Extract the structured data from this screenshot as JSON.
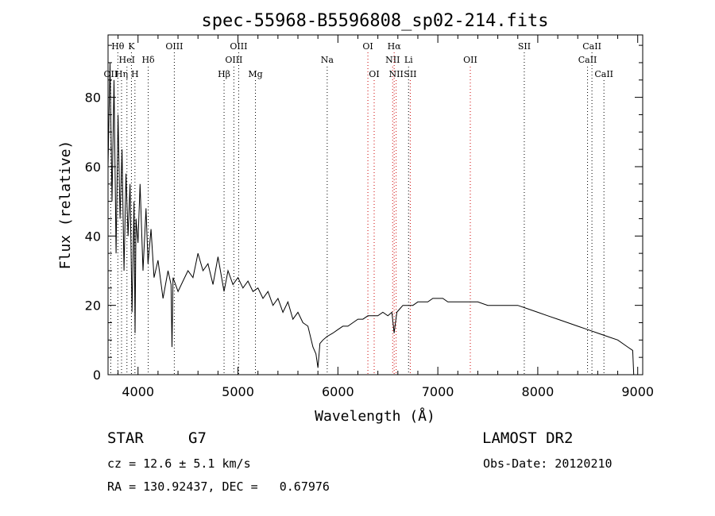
{
  "chart_data": {
    "type": "line",
    "title": "spec-55968-B5596808_sp02-214.fits",
    "xlabel": "Wavelength (Å)",
    "ylabel": "Flux (relative)",
    "xlim": [
      3700,
      9050
    ],
    "ylim": [
      0,
      98
    ],
    "xticks": [
      "4000",
      "5000",
      "6000",
      "7000",
      "8000",
      "9000"
    ],
    "yticks": [
      "0",
      "20",
      "40",
      "60",
      "80"
    ],
    "grid": false,
    "series": [
      {
        "x": [
          3700,
          3720,
          3740,
          3760,
          3780,
          3800,
          3820,
          3840,
          3860,
          3880,
          3900,
          3920,
          3940,
          3960,
          3970,
          3980,
          4000,
          4020,
          4050,
          4080,
          4100,
          4130,
          4160,
          4200,
          4250,
          4300,
          4330,
          4340,
          4350,
          4400,
          4450,
          4500,
          4550,
          4600,
          4650,
          4700,
          4750,
          4800,
          4861,
          4900,
          4950,
          5000,
          5050,
          5100,
          5150,
          5200,
          5250,
          5300,
          5350,
          5400,
          5450,
          5500,
          5550,
          5600,
          5650,
          5700,
          5750,
          5780,
          5800,
          5820,
          5850,
          5890,
          5950,
          6000,
          6050,
          6100,
          6150,
          6200,
          6250,
          6300,
          6350,
          6400,
          6450,
          6500,
          6540,
          6563,
          6590,
          6620,
          6650,
          6700,
          6750,
          6800,
          6850,
          6900,
          6950,
          7000,
          7050,
          7100,
          7150,
          7200,
          7300,
          7400,
          7500,
          7600,
          7700,
          7800,
          7900,
          8000,
          8100,
          8200,
          8300,
          8400,
          8500,
          8600,
          8700,
          8800,
          8900,
          8950,
          8960,
          8970,
          8980
        ],
        "y": [
          60,
          90,
          50,
          85,
          35,
          75,
          45,
          65,
          30,
          58,
          40,
          55,
          18,
          50,
          12,
          45,
          38,
          55,
          30,
          48,
          32,
          42,
          28,
          33,
          22,
          30,
          26,
          8,
          28,
          24,
          27,
          30,
          28,
          35,
          30,
          32,
          26,
          34,
          24,
          30,
          26,
          28,
          25,
          27,
          24,
          25,
          22,
          24,
          20,
          22,
          18,
          21,
          16,
          18,
          15,
          14,
          8,
          6,
          2,
          9,
          10,
          11,
          12,
          13,
          14,
          14,
          15,
          16,
          16,
          17,
          17,
          17,
          18,
          17,
          18,
          12,
          18,
          19,
          20,
          20,
          20,
          21,
          21,
          21,
          22,
          22,
          22,
          21,
          21,
          21,
          21,
          21,
          20,
          20,
          20,
          20,
          19,
          18,
          17,
          16,
          15,
          14,
          13,
          12,
          11,
          10,
          8,
          7,
          0,
          0,
          0
        ]
      }
    ],
    "lines": [
      {
        "label": "OII",
        "x": 3727,
        "color": "#000000",
        "row": 3
      },
      {
        "label": "Hθ",
        "x": 3798,
        "color": "#000000",
        "row": 1
      },
      {
        "label": "Hη",
        "x": 3835,
        "color": "#000000",
        "row": 3
      },
      {
        "label": "HeI",
        "x": 3889,
        "color": "#000000",
        "row": 2
      },
      {
        "label": "K",
        "x": 3934,
        "color": "#000000",
        "row": 1
      },
      {
        "label": "H",
        "x": 3969,
        "color": "#000000",
        "row": 3
      },
      {
        "label": "Hδ",
        "x": 4102,
        "color": "#000000",
        "row": 2
      },
      {
        "label": "OIII",
        "x": 4363,
        "color": "#000000",
        "row": 1
      },
      {
        "label": "Hβ",
        "x": 4861,
        "color": "#000000",
        "row": 3
      },
      {
        "label": "OIII",
        "x": 4959,
        "color": "#000000",
        "row": 2
      },
      {
        "label": "OIII",
        "x": 5007,
        "color": "#000000",
        "row": 1
      },
      {
        "label": "Mg",
        "x": 5175,
        "color": "#000000",
        "row": 3
      },
      {
        "label": "Na",
        "x": 5893,
        "color": "#000000",
        "row": 2
      },
      {
        "label": "OI",
        "x": 6300,
        "color": "#cc0000",
        "row": 1
      },
      {
        "label": "OI",
        "x": 6363,
        "color": "#cc0000",
        "row": 3
      },
      {
        "label": "NII",
        "x": 6548,
        "color": "#cc0000",
        "row": 2
      },
      {
        "label": "Hα",
        "x": 6563,
        "color": "#cc0000",
        "row": 1
      },
      {
        "label": "NII",
        "x": 6583,
        "color": "#cc0000",
        "row": 3
      },
      {
        "label": "Li",
        "x": 6707,
        "color": "#000000",
        "row": 2
      },
      {
        "label": "SII",
        "x": 6724,
        "color": "#cc0000",
        "row": 3
      },
      {
        "label": "OII",
        "x": 7325,
        "color": "#cc0000",
        "row": 2
      },
      {
        "label": "SII",
        "x": 7865,
        "color": "#000000",
        "row": 1
      },
      {
        "label": "CaII",
        "x": 8498,
        "color": "#000000",
        "row": 2
      },
      {
        "label": "CaII",
        "x": 8542,
        "color": "#000000",
        "row": 1
      },
      {
        "label": "CaII",
        "x": 8662,
        "color": "#000000",
        "row": 3
      }
    ]
  },
  "info": {
    "object_class": "STAR",
    "subclass": "G7",
    "survey": "LAMOST DR2",
    "cz": "cz = 12.6 ± 5.1 km/s",
    "obs_date": "Obs-Date: 20120210",
    "radec": "RA = 130.92437, DEC =   0.67976"
  }
}
